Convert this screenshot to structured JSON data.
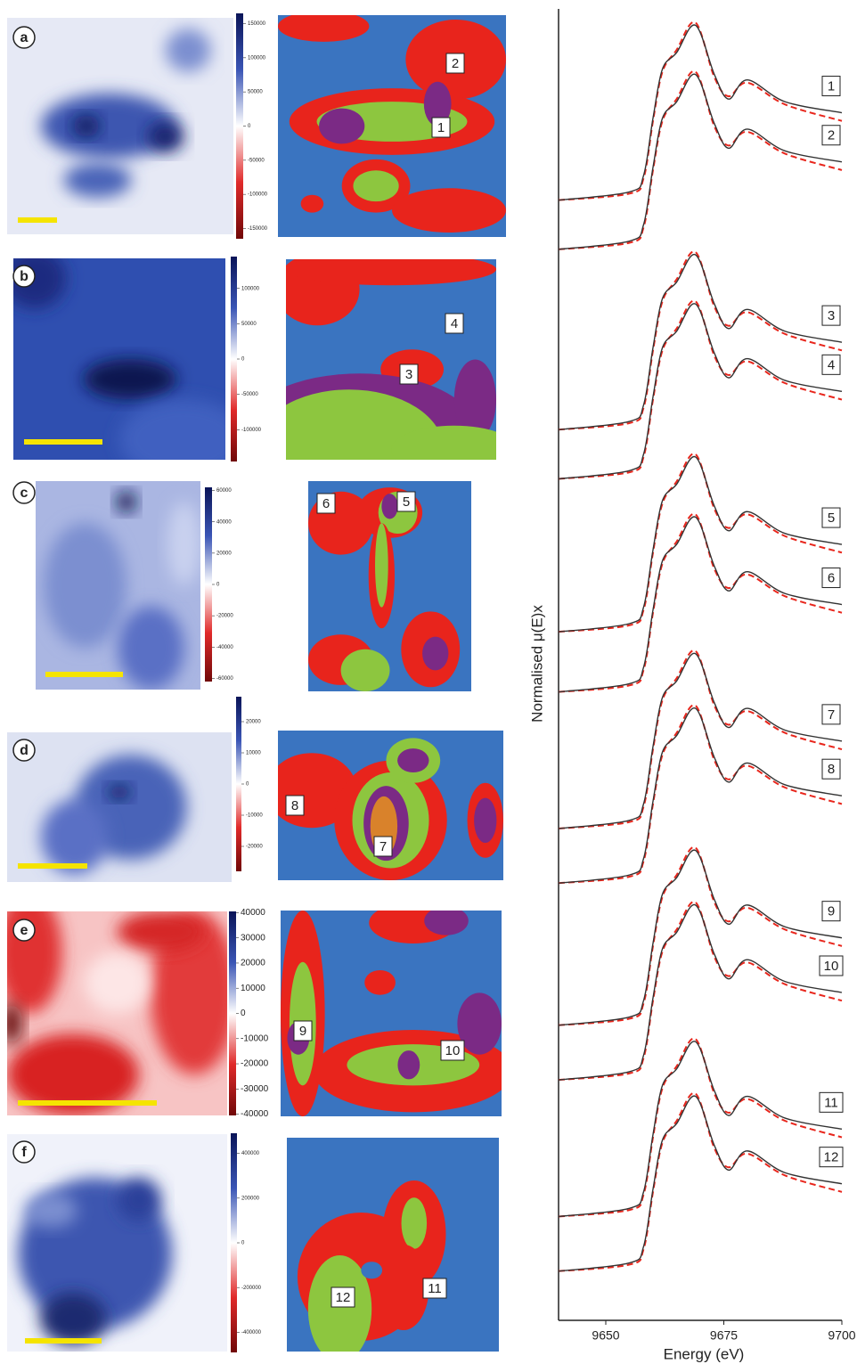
{
  "panels": [
    {
      "letter": "a",
      "colorbar": {
        "clim": [
          -165000,
          165000
        ],
        "ticks": [
          150000,
          100000,
          50000,
          0,
          -50000,
          -100000,
          -150000
        ]
      },
      "regions": [
        "2",
        "1"
      ]
    },
    {
      "letter": "b",
      "colorbar": {
        "clim": [
          -145000,
          145000
        ],
        "ticks": [
          100000,
          50000,
          0,
          -50000,
          -100000
        ]
      },
      "regions": [
        "4",
        "3"
      ]
    },
    {
      "letter": "c",
      "colorbar": {
        "clim": [
          -62000,
          62000
        ],
        "ticks": [
          60000,
          40000,
          20000,
          0,
          -20000,
          -40000,
          -60000
        ]
      },
      "regions": [
        "6",
        "5"
      ]
    },
    {
      "letter": "d",
      "colorbar": {
        "clim": [
          -28000,
          28000
        ],
        "ticks": [
          20000,
          10000,
          0,
          -10000,
          -20000
        ]
      },
      "regions": [
        "8",
        "7"
      ]
    },
    {
      "letter": "e",
      "colorbar": {
        "clim": [
          -40500,
          40500
        ],
        "ticks": [
          40000,
          30000,
          20000,
          10000,
          0,
          -10000,
          -20000,
          -30000,
          -40000
        ]
      },
      "regions": [
        "9",
        "10"
      ]
    },
    {
      "letter": "f",
      "colorbar": {
        "clim": [
          -490000,
          490000
        ],
        "ticks": [
          400000,
          200000,
          0,
          -200000,
          -400000
        ]
      },
      "regions": [
        "12",
        "11"
      ]
    }
  ],
  "chart_data": {
    "type": "line",
    "xlabel": "Energy (eV)",
    "ylabel": "Normalised μ(E)x",
    "x": [
      9640,
      9655,
      9658,
      9660,
      9662,
      9665,
      9669,
      9673,
      9676,
      9680,
      9688,
      9700
    ],
    "xlim": [
      9640,
      9700
    ],
    "xticks": [
      9650,
      9675,
      9700
    ],
    "ylim": [
      0,
      24
    ],
    "color": "#333333",
    "fit_color": "#e8261c",
    "spectra": [
      {
        "label": "1",
        "values": [
          20.5,
          20.65,
          20.95,
          22.0,
          22.9,
          23.2,
          23.7,
          22.8,
          22.35,
          22.7,
          22.3,
          22.1
        ],
        "fit": [
          20.5,
          20.62,
          20.9,
          21.95,
          22.85,
          23.25,
          23.75,
          22.75,
          22.4,
          22.65,
          22.25,
          21.95
        ]
      },
      {
        "label": "2",
        "values": [
          19.6,
          19.75,
          20.05,
          21.1,
          22.0,
          22.3,
          22.8,
          21.9,
          21.45,
          21.8,
          21.4,
          21.2
        ],
        "fit": [
          19.6,
          19.72,
          20.0,
          21.05,
          21.95,
          22.35,
          22.85,
          21.85,
          21.5,
          21.75,
          21.35,
          21.05
        ]
      },
      {
        "label": "3",
        "values": [
          16.3,
          16.45,
          16.75,
          17.8,
          18.7,
          19.0,
          19.5,
          18.6,
          18.15,
          18.5,
          18.1,
          17.9
        ],
        "fit": [
          16.3,
          16.42,
          16.7,
          17.75,
          18.65,
          19.05,
          19.55,
          18.55,
          18.2,
          18.45,
          18.05,
          17.75
        ]
      },
      {
        "label": "4",
        "values": [
          15.4,
          15.55,
          15.85,
          16.9,
          17.8,
          18.1,
          18.6,
          17.7,
          17.25,
          17.6,
          17.2,
          17.0
        ],
        "fit": [
          15.4,
          15.52,
          15.8,
          16.85,
          17.75,
          18.15,
          18.65,
          17.65,
          17.3,
          17.55,
          17.15,
          16.85
        ]
      },
      {
        "label": "5",
        "values": [
          12.6,
          12.75,
          13.05,
          14.1,
          15.0,
          15.3,
          15.8,
          14.9,
          14.45,
          14.8,
          14.4,
          14.2
        ],
        "fit": [
          12.6,
          12.72,
          13.0,
          14.05,
          14.95,
          15.35,
          15.85,
          14.85,
          14.5,
          14.75,
          14.35,
          14.05
        ]
      },
      {
        "label": "6",
        "values": [
          11.5,
          11.65,
          11.95,
          13.0,
          13.9,
          14.2,
          14.7,
          13.8,
          13.35,
          13.7,
          13.3,
          13.1
        ],
        "fit": [
          11.5,
          11.62,
          11.9,
          12.95,
          13.85,
          14.25,
          14.75,
          13.75,
          13.4,
          13.65,
          13.25,
          12.95
        ]
      },
      {
        "label": "7",
        "values": [
          9.0,
          9.15,
          9.45,
          10.5,
          11.4,
          11.7,
          12.2,
          11.3,
          10.85,
          11.2,
          10.8,
          10.6
        ],
        "fit": [
          9.0,
          9.12,
          9.4,
          10.45,
          11.35,
          11.75,
          12.25,
          11.25,
          10.9,
          11.15,
          10.75,
          10.45
        ]
      },
      {
        "label": "8",
        "values": [
          8.0,
          8.15,
          8.45,
          9.5,
          10.4,
          10.7,
          11.2,
          10.3,
          9.85,
          10.2,
          9.8,
          9.6
        ],
        "fit": [
          8.0,
          8.12,
          8.4,
          9.45,
          10.35,
          10.75,
          11.25,
          10.25,
          9.9,
          10.15,
          9.75,
          9.45
        ]
      },
      {
        "label": "9",
        "values": [
          5.4,
          5.55,
          5.85,
          6.9,
          7.8,
          8.1,
          8.6,
          7.7,
          7.25,
          7.6,
          7.2,
          7.0
        ],
        "fit": [
          5.4,
          5.52,
          5.8,
          6.85,
          7.75,
          8.15,
          8.65,
          7.65,
          7.3,
          7.55,
          7.15,
          6.85
        ]
      },
      {
        "label": "10",
        "values": [
          4.4,
          4.55,
          4.85,
          5.9,
          6.8,
          7.1,
          7.6,
          6.7,
          6.25,
          6.6,
          6.2,
          6.0
        ],
        "fit": [
          4.4,
          4.52,
          4.8,
          5.85,
          6.75,
          7.15,
          7.65,
          6.65,
          6.3,
          6.55,
          6.15,
          5.85
        ]
      },
      {
        "label": "11",
        "values": [
          1.9,
          2.05,
          2.35,
          3.4,
          4.3,
          4.6,
          5.1,
          4.2,
          3.75,
          4.1,
          3.7,
          3.5
        ],
        "fit": [
          1.9,
          2.02,
          2.3,
          3.35,
          4.25,
          4.65,
          5.15,
          4.15,
          3.8,
          4.05,
          3.65,
          3.35
        ]
      },
      {
        "label": "12",
        "values": [
          0.9,
          1.05,
          1.35,
          2.4,
          3.3,
          3.6,
          4.1,
          3.2,
          2.75,
          3.1,
          2.7,
          2.5
        ],
        "fit": [
          0.9,
          1.02,
          1.3,
          2.35,
          3.25,
          3.65,
          4.15,
          3.15,
          2.8,
          3.05,
          2.65,
          2.35
        ]
      }
    ]
  }
}
